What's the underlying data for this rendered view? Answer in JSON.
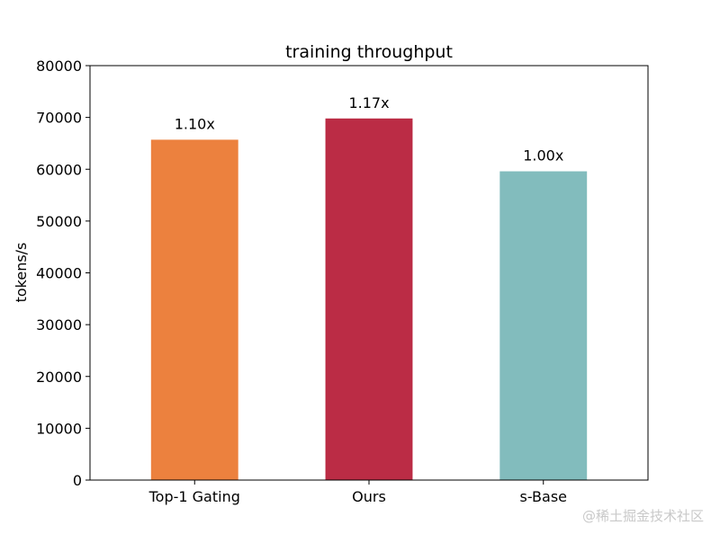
{
  "chart_data": {
    "type": "bar",
    "title": "training throughput",
    "xlabel": "",
    "ylabel": "tokens/s",
    "ylim": [
      0,
      80000
    ],
    "yticks": [
      0,
      10000,
      20000,
      30000,
      40000,
      50000,
      60000,
      70000,
      80000
    ],
    "categories": [
      "Top-1 Gating",
      "Ours",
      "s-Base"
    ],
    "values": [
      65700,
      69800,
      59600
    ],
    "bar_labels": [
      "1.10x",
      "1.17x",
      "1.00x"
    ],
    "colors": [
      "#ec813e",
      "#bb2c45",
      "#82bcbd"
    ],
    "grid": false,
    "legend": "none"
  },
  "watermark": "@稀土掘金技术社区"
}
